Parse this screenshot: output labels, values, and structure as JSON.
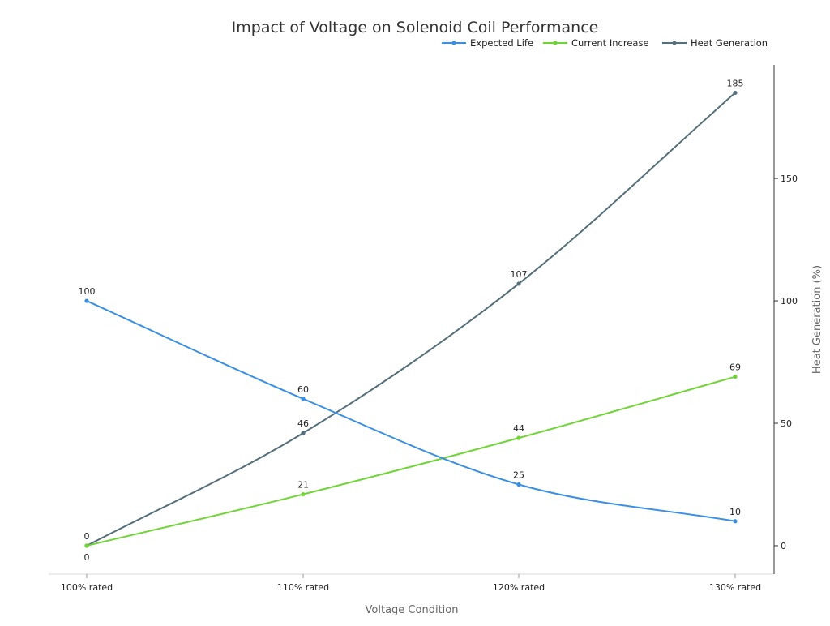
{
  "chart_data": {
    "type": "line",
    "title": "Impact of Voltage on Solenoid Coil Performance",
    "xlabel": "Voltage Condition",
    "ylabel": "Heat Generation (%)",
    "y_axis_side": "right",
    "categories": [
      "100% rated",
      "110% rated",
      "120% rated",
      "130% rated"
    ],
    "ylim": [
      -11.6,
      196.4
    ],
    "yticks": [
      0,
      50,
      100,
      150
    ],
    "grid": false,
    "legend_position": "top-right",
    "smooth": true,
    "series": [
      {
        "name": "Expected Life",
        "values": [
          100,
          60,
          25,
          10
        ],
        "color": "#3a8fe2"
      },
      {
        "name": "Current Increase",
        "values": [
          0,
          21,
          44,
          69
        ],
        "color": "#6fd435"
      },
      {
        "name": "Heat Generation",
        "values": [
          0,
          46,
          107,
          185
        ],
        "color": "#546e7a"
      }
    ]
  }
}
